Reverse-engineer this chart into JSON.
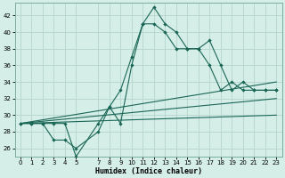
{
  "xlabel": "Humidex (Indice chaleur)",
  "background_color": "#d5eee8",
  "grid_color": "#b8d8d0",
  "line_color": "#1a6656",
  "xlim": [
    -0.5,
    23.5
  ],
  "ylim": [
    25,
    43.5
  ],
  "yticks": [
    26,
    28,
    30,
    32,
    34,
    36,
    38,
    40,
    42
  ],
  "xticks": [
    0,
    1,
    2,
    3,
    4,
    5,
    7,
    8,
    9,
    10,
    11,
    12,
    13,
    14,
    15,
    16,
    17,
    18,
    19,
    20,
    21,
    22,
    23
  ],
  "series_main": [
    29,
    29,
    29,
    29,
    29,
    25,
    29,
    31,
    29,
    36,
    41,
    43,
    41,
    40,
    38,
    38,
    39,
    36,
    33,
    34,
    33,
    33,
    33
  ],
  "series_main_x": [
    0,
    1,
    2,
    3,
    4,
    5,
    7,
    8,
    9,
    10,
    11,
    12,
    13,
    14,
    15,
    16,
    17,
    18,
    19,
    20,
    21,
    22,
    23
  ],
  "series2": [
    29,
    29,
    29,
    27,
    27,
    26,
    28,
    31,
    33,
    37,
    41,
    41,
    40,
    38,
    38,
    38,
    36,
    33,
    34,
    33,
    33,
    33,
    33
  ],
  "series2_x": [
    0,
    1,
    2,
    3,
    4,
    5,
    7,
    8,
    9,
    10,
    11,
    12,
    13,
    14,
    15,
    16,
    17,
    18,
    19,
    20,
    21,
    22,
    23
  ],
  "trend1_x": [
    0,
    23
  ],
  "trend1_y": [
    29.0,
    34.0
  ],
  "trend2_x": [
    0,
    23
  ],
  "trend2_y": [
    29.0,
    32.0
  ],
  "trend3_x": [
    0,
    23
  ],
  "trend3_y": [
    29.0,
    30.0
  ]
}
